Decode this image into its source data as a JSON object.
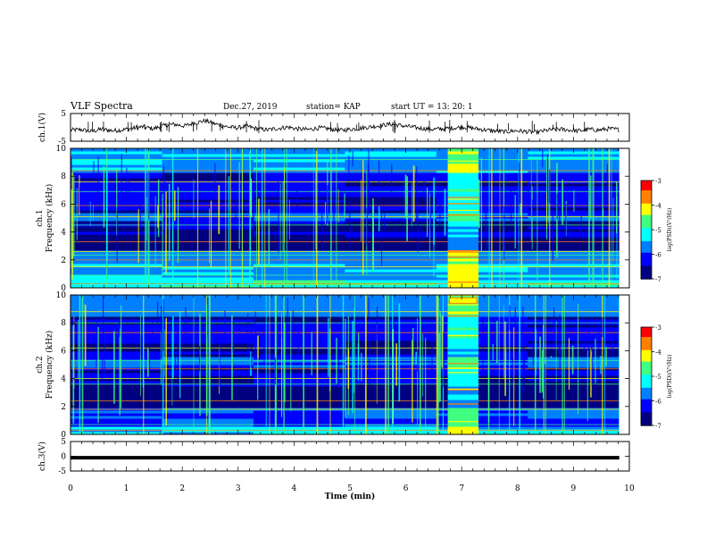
{
  "header": {
    "title": "VLF Spectra",
    "date": "Dec.27, 2019",
    "station": "station= KAP",
    "start": "start  UT =   13: 20: 1"
  },
  "chart_data": [
    {
      "type": "line",
      "panel": "ch1-waveform",
      "ylabel": "ch.1(V)",
      "ylim": [
        -5,
        5
      ],
      "yticks": [
        "5",
        "-5"
      ],
      "xlim": [
        0,
        10
      ],
      "x_end": 9.82,
      "series": [
        {
          "values": [
            -1.0,
            -0.8,
            -1.5,
            -0.6,
            -1.2,
            -0.9,
            -0.3,
            0.2,
            -0.5,
            0.6,
            1.1,
            0.5,
            1.6,
            2.4,
            1.2,
            0.3,
            -0.2,
            0.4,
            -0.5,
            -0.9,
            -0.4,
            0.1,
            -0.6,
            -0.8,
            -0.2,
            -0.5,
            -1.1,
            -0.7,
            -0.3,
            0.2,
            0.7,
            1.2,
            0.6,
            0.1,
            -0.4,
            -0.7,
            -0.5,
            -0.2,
            0.1,
            -0.4,
            -0.9,
            -1.3,
            -1.6,
            -1.2,
            -1.5,
            -1.8,
            -1.1,
            -0.6,
            -0.9,
            -1.3,
            -0.7,
            -1.0,
            -0.5,
            -0.8
          ]
        }
      ]
    },
    {
      "type": "heatmap",
      "panel": "ch1-spectrogram",
      "ylabel": "ch.1 Frequency (kHz)",
      "ylim": [
        0,
        10
      ],
      "yticks": [
        "0",
        "2",
        "4",
        "6",
        "8",
        "10"
      ],
      "xlim": [
        0,
        10
      ],
      "x_end": 9.82,
      "burst": [
        6.75,
        7.3
      ],
      "colorbar": {
        "label": "log(PSD)(V²/Hz)",
        "range": [
          -7,
          -3
        ],
        "ticks": [
          "-3",
          "-4",
          "-5",
          "-6",
          "-7"
        ]
      }
    },
    {
      "type": "heatmap",
      "panel": "ch2-spectrogram",
      "ylabel": "ch.2 Frequency (kHz)",
      "ylim": [
        0,
        10
      ],
      "yticks": [
        "0",
        "2",
        "4",
        "6",
        "8",
        "10"
      ],
      "xlim": [
        0,
        10
      ],
      "x_end": 9.82,
      "burst": [
        6.75,
        7.3
      ],
      "colorbar": {
        "label": "log(PSD)(V²/Hz)",
        "range": [
          -7,
          -3
        ],
        "ticks": [
          "-3",
          "-4",
          "-5",
          "-6",
          "-7"
        ]
      }
    },
    {
      "type": "line",
      "panel": "ch3-waveform",
      "ylabel": "ch.3(V)",
      "ylim": [
        -5,
        5
      ],
      "yticks": [
        "5",
        "0",
        "-5"
      ],
      "xlim": [
        0,
        10
      ],
      "x_end": 9.82,
      "series": [
        {
          "values": [
            -0.5,
            -0.5
          ]
        }
      ],
      "xlabel": "Time (min)",
      "xticks": [
        "0",
        "1",
        "2",
        "3",
        "4",
        "5",
        "6",
        "7",
        "8",
        "9",
        "10"
      ]
    }
  ],
  "colors": {
    "colormap": [
      "#000080",
      "#0000ff",
      "#0080ff",
      "#00ffff",
      "#40ff80",
      "#ffff00",
      "#ff8000",
      "#ff0000",
      "#ffffff"
    ],
    "axis": "#000000"
  }
}
